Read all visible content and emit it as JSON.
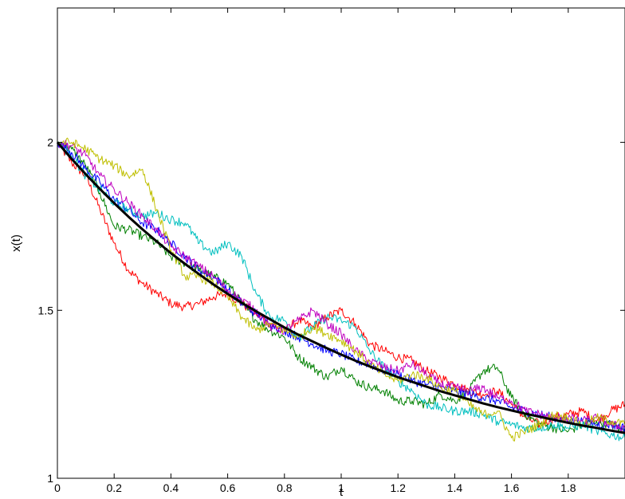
{
  "chart_data": {
    "type": "line",
    "title": "",
    "xlabel": "t",
    "ylabel": "x(t)",
    "xlim": [
      0,
      2
    ],
    "ylim": [
      1,
      2.4
    ],
    "grid": false,
    "legend": "none",
    "x_ticks": [
      0,
      0.2,
      0.4,
      0.6,
      0.8,
      1,
      1.2,
      1.4,
      1.6,
      1.8
    ],
    "x_tick_labels": [
      "0",
      "0.2",
      "0.4",
      "0.6",
      "0.8",
      "1",
      "1.2",
      "1.4",
      "1.6",
      "1.8"
    ],
    "y_ticks": [
      1,
      1.5,
      2
    ],
    "y_tick_labels": [
      "1",
      "1.5",
      "2"
    ],
    "x": [
      0,
      0.05,
      0.1,
      0.15,
      0.2,
      0.25,
      0.3,
      0.35,
      0.4,
      0.45,
      0.5,
      0.55,
      0.6,
      0.65,
      0.7,
      0.75,
      0.8,
      0.85,
      0.9,
      0.95,
      1.0,
      1.05,
      1.1,
      1.15,
      1.2,
      1.25,
      1.3,
      1.35,
      1.4,
      1.45,
      1.5,
      1.55,
      1.6,
      1.65,
      1.7,
      1.75,
      1.8,
      1.85,
      1.9,
      1.95,
      2.0
    ],
    "series": [
      {
        "color": "#000000",
        "values": [
          2.0,
          1.951,
          1.905,
          1.861,
          1.819,
          1.779,
          1.741,
          1.705,
          1.67,
          1.638,
          1.607,
          1.577,
          1.549,
          1.522,
          1.497,
          1.473,
          1.449,
          1.427,
          1.407,
          1.387,
          1.368,
          1.35,
          1.333,
          1.317,
          1.301,
          1.287,
          1.273,
          1.259,
          1.247,
          1.235,
          1.223,
          1.212,
          1.202,
          1.192,
          1.183,
          1.174,
          1.165,
          1.157,
          1.15,
          1.142,
          1.135
        ]
      },
      {
        "color": "#ff0000",
        "values": [
          2.0,
          1.94,
          1.9,
          1.8,
          1.7,
          1.62,
          1.58,
          1.55,
          1.52,
          1.51,
          1.52,
          1.54,
          1.55,
          1.52,
          1.49,
          1.46,
          1.44,
          1.47,
          1.45,
          1.48,
          1.5,
          1.46,
          1.4,
          1.38,
          1.36,
          1.35,
          1.32,
          1.3,
          1.28,
          1.26,
          1.25,
          1.26,
          1.22,
          1.18,
          1.16,
          1.18,
          1.19,
          1.2,
          1.17,
          1.2,
          1.22
        ]
      },
      {
        "color": "#008000",
        "values": [
          2.0,
          1.98,
          1.93,
          1.85,
          1.75,
          1.74,
          1.72,
          1.7,
          1.66,
          1.64,
          1.62,
          1.6,
          1.58,
          1.52,
          1.47,
          1.44,
          1.42,
          1.36,
          1.33,
          1.3,
          1.33,
          1.29,
          1.27,
          1.26,
          1.23,
          1.23,
          1.22,
          1.25,
          1.23,
          1.26,
          1.32,
          1.33,
          1.24,
          1.19,
          1.16,
          1.15,
          1.14,
          1.16,
          1.17,
          1.16,
          1.14
        ]
      },
      {
        "color": "#0000ff",
        "values": [
          2.0,
          1.97,
          1.92,
          1.88,
          1.83,
          1.8,
          1.76,
          1.74,
          1.7,
          1.66,
          1.62,
          1.6,
          1.56,
          1.52,
          1.49,
          1.46,
          1.44,
          1.42,
          1.4,
          1.38,
          1.37,
          1.35,
          1.34,
          1.32,
          1.31,
          1.29,
          1.28,
          1.27,
          1.26,
          1.25,
          1.24,
          1.23,
          1.21,
          1.2,
          1.19,
          1.18,
          1.17,
          1.17,
          1.16,
          1.16,
          1.15
        ]
      },
      {
        "color": "#00bfbf",
        "values": [
          2.0,
          1.96,
          1.9,
          1.86,
          1.82,
          1.8,
          1.78,
          1.79,
          1.77,
          1.76,
          1.7,
          1.67,
          1.7,
          1.66,
          1.55,
          1.48,
          1.47,
          1.42,
          1.45,
          1.48,
          1.47,
          1.45,
          1.38,
          1.33,
          1.29,
          1.26,
          1.22,
          1.21,
          1.2,
          1.2,
          1.19,
          1.17,
          1.16,
          1.15,
          1.15,
          1.16,
          1.15,
          1.16,
          1.14,
          1.13,
          1.12
        ]
      },
      {
        "color": "#bf00bf",
        "values": [
          2.0,
          1.99,
          1.96,
          1.9,
          1.86,
          1.82,
          1.78,
          1.74,
          1.69,
          1.66,
          1.63,
          1.6,
          1.56,
          1.53,
          1.5,
          1.45,
          1.44,
          1.47,
          1.5,
          1.46,
          1.43,
          1.38,
          1.35,
          1.33,
          1.32,
          1.34,
          1.31,
          1.28,
          1.27,
          1.26,
          1.27,
          1.24,
          1.23,
          1.2,
          1.19,
          1.18,
          1.18,
          1.17,
          1.18,
          1.16,
          1.15
        ]
      },
      {
        "color": "#bfbf00",
        "values": [
          2.0,
          2.0,
          1.98,
          1.95,
          1.93,
          1.9,
          1.92,
          1.8,
          1.68,
          1.6,
          1.6,
          1.58,
          1.54,
          1.48,
          1.44,
          1.46,
          1.44,
          1.42,
          1.45,
          1.43,
          1.41,
          1.38,
          1.34,
          1.31,
          1.29,
          1.31,
          1.3,
          1.27,
          1.26,
          1.22,
          1.19,
          1.2,
          1.12,
          1.14,
          1.16,
          1.19,
          1.18,
          1.16,
          1.18,
          1.17,
          1.16
        ]
      }
    ]
  }
}
